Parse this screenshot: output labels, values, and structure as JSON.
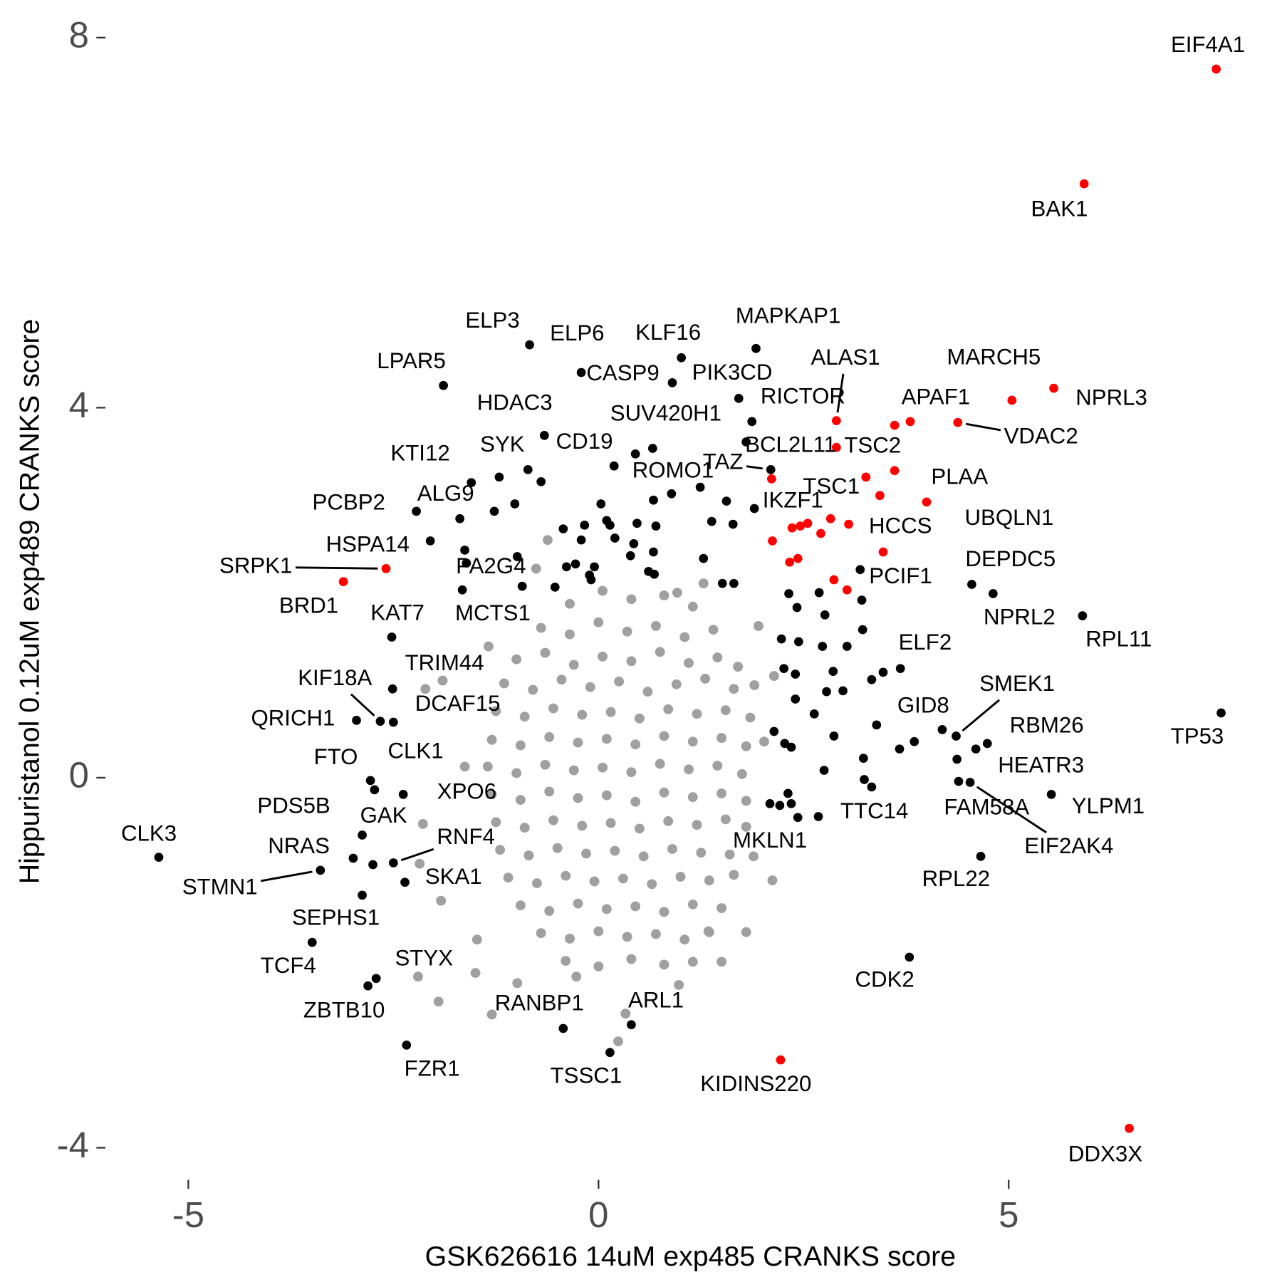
{
  "chart_data": {
    "type": "scatter",
    "x_label": "GSK626616 14uM exp485 CRANKS score",
    "y_label": "Hippuristanol 0.12uM exp489 CRANKS score",
    "xlim": [
      -5.99,
      7.87
    ],
    "ylim": [
      -4.24,
      8.3
    ],
    "xticks": [
      -5,
      0,
      5
    ],
    "yticks": [
      -4,
      0,
      4,
      8
    ],
    "grid": false,
    "series": [
      {
        "color": "#a0a0a0",
        "x": [
          -0.35,
          0.05,
          0.4,
          0.8,
          1.15,
          -0.7,
          -0.35,
          0.0,
          0.35,
          0.7,
          1.05,
          1.4,
          -1.0,
          -0.65,
          -0.3,
          0.05,
          0.4,
          0.75,
          1.1,
          1.45,
          1.7,
          -1.15,
          -0.8,
          -0.45,
          -0.1,
          0.25,
          0.6,
          0.95,
          1.3,
          1.65,
          1.9,
          -1.25,
          -0.9,
          -0.55,
          -0.2,
          0.15,
          0.5,
          0.85,
          1.2,
          1.55,
          1.85,
          -1.3,
          -0.95,
          -0.6,
          -0.25,
          0.1,
          0.45,
          0.8,
          1.15,
          1.5,
          1.8,
          -1.35,
          -1.0,
          -0.65,
          -0.3,
          0.05,
          0.4,
          0.75,
          1.1,
          1.45,
          1.75,
          -1.3,
          -0.95,
          -0.6,
          -0.25,
          0.1,
          0.45,
          0.8,
          1.15,
          1.5,
          1.8,
          -1.25,
          -0.9,
          -0.55,
          -0.2,
          0.15,
          0.5,
          0.85,
          1.2,
          1.55,
          1.8,
          -1.2,
          -0.85,
          -0.5,
          -0.15,
          0.2,
          0.55,
          0.9,
          1.25,
          1.6,
          -1.1,
          -0.75,
          -0.4,
          -0.05,
          0.3,
          0.65,
          1.0,
          1.35,
          1.65,
          -0.95,
          -0.6,
          -0.25,
          0.1,
          0.45,
          0.8,
          1.15,
          1.5,
          -0.7,
          -0.35,
          0.0,
          0.35,
          0.7,
          1.05,
          1.35,
          -0.4,
          0.0,
          0.4,
          0.8,
          1.15,
          -0.62,
          -0.76,
          0.96,
          1.28,
          1.95,
          -1.34,
          -2.11,
          -1.9,
          -2.14,
          -2.18,
          -1.92,
          -2.2,
          -1.95,
          -1.3,
          -0.99,
          -1.5,
          -0.27,
          0.24,
          0.98,
          1.5,
          1.8,
          2.12,
          1.89,
          2.02,
          2.14,
          -1.63,
          -1.48,
          0.33,
          1.34
        ],
        "values": [
          1.88,
          2.02,
          1.93,
          1.97,
          1.85,
          1.62,
          1.55,
          1.68,
          1.58,
          1.64,
          1.52,
          1.6,
          1.28,
          1.35,
          1.22,
          1.31,
          1.26,
          1.36,
          1.24,
          1.3,
          1.2,
          1.02,
          0.95,
          1.06,
          0.98,
          1.04,
          0.93,
          1.01,
          1.07,
          0.96,
          1.0,
          0.72,
          0.66,
          0.75,
          0.68,
          0.71,
          0.64,
          0.74,
          0.69,
          0.73,
          0.65,
          0.41,
          0.35,
          0.44,
          0.38,
          0.42,
          0.36,
          0.45,
          0.39,
          0.43,
          0.34,
          0.12,
          0.05,
          0.14,
          0.08,
          0.11,
          0.06,
          0.15,
          0.09,
          0.13,
          0.04,
          -0.18,
          -0.24,
          -0.15,
          -0.22,
          -0.19,
          -0.26,
          -0.16,
          -0.21,
          -0.17,
          -0.25,
          -0.48,
          -0.54,
          -0.46,
          -0.52,
          -0.49,
          -0.55,
          -0.47,
          -0.51,
          -0.45,
          -0.53,
          -0.78,
          -0.84,
          -0.76,
          -0.82,
          -0.79,
          -0.85,
          -0.77,
          -0.81,
          -0.83,
          -1.08,
          -1.14,
          -1.06,
          -1.12,
          -1.09,
          -1.15,
          -1.07,
          -1.11,
          -1.05,
          -1.38,
          -1.44,
          -1.36,
          -1.42,
          -1.39,
          -1.45,
          -1.37,
          -1.41,
          -1.68,
          -1.74,
          -1.66,
          -1.72,
          -1.69,
          -1.75,
          -1.67,
          -1.98,
          -2.04,
          -1.96,
          -2.02,
          -1.99,
          2.57,
          2.26,
          2.0,
          2.1,
          1.64,
          1.42,
          0.96,
          1.05,
          -0.5,
          -0.93,
          -1.33,
          -2.15,
          -2.42,
          -2.56,
          -2.22,
          -2.11,
          -2.15,
          -2.85,
          -2.24,
          -1.99,
          -1.67,
          -1.11,
          -0.85,
          0.39,
          1.1,
          0.12,
          -1.75,
          -2.55,
          -1.66
        ]
      },
      {
        "color": "#000000",
        "x": [
          -0.84,
          -0.21,
          1.01,
          1.92,
          -1.89,
          0.9,
          1.71,
          1.87,
          -0.66,
          0.66,
          0.45,
          1.8,
          0.19,
          -0.86,
          -1.55,
          -1.21,
          -0.7,
          2.1,
          1.24,
          0.89,
          0.67,
          1.56,
          -1.02,
          -1.27,
          -2.22,
          -1.69,
          0.03,
          0.1,
          0.14,
          -0.17,
          -0.43,
          -0.21,
          0.2,
          0.47,
          0.7,
          0.43,
          0.67,
          0.39,
          1.38,
          1.64,
          1.9,
          -2.05,
          -1.63,
          -1.61,
          -0.99,
          -0.39,
          -0.28,
          -0.05,
          -0.11,
          -0.93,
          -0.53,
          -0.09,
          0.61,
          0.68,
          1.28,
          1.51,
          1.65,
          -1.66,
          -2.52,
          -2.51,
          -2.66,
          -2.95,
          -2.5,
          -2.78,
          -2.73,
          -2.38,
          -2.88,
          -2.99,
          -2.5,
          -2.75,
          -3.39,
          -2.36,
          -2.88,
          -3.49,
          -2.71,
          -2.81,
          -2.34,
          -0.43,
          0.4,
          0.14,
          -5.36,
          3.79,
          2.32,
          2.42,
          2.69,
          3.21,
          3.22,
          2.76,
          2.23,
          2.44,
          2.73,
          3.03,
          2.26,
          2.4,
          2.86,
          3.33,
          3.47,
          3.68,
          2.98,
          2.78,
          2.4,
          2.63,
          3.39,
          3.85,
          3.67,
          2.87,
          3.23,
          2.35,
          2.27,
          2.14,
          2.75,
          3.33,
          3.24,
          2.68,
          2.09,
          2.21,
          2.31,
          2.35,
          2.43,
          4.19,
          4.36,
          4.6,
          4.74,
          4.39,
          4.53,
          5.52,
          4.37,
          4.66,
          7.59,
          4.81,
          4.55,
          5.9,
          3.19
        ],
        "values": [
          4.68,
          4.38,
          4.54,
          4.64,
          4.24,
          4.27,
          4.1,
          3.85,
          3.7,
          3.56,
          3.5,
          3.63,
          3.37,
          3.33,
          3.19,
          3.25,
          3.2,
          3.33,
          3.14,
          3.07,
          3.0,
          2.99,
          2.96,
          2.88,
          2.88,
          2.8,
          2.96,
          2.78,
          2.73,
          2.73,
          2.69,
          2.57,
          2.59,
          2.75,
          2.72,
          2.53,
          2.44,
          2.4,
          2.77,
          2.74,
          2.91,
          2.56,
          2.46,
          2.32,
          2.39,
          2.28,
          2.31,
          2.28,
          2.19,
          2.07,
          2.06,
          2.14,
          2.23,
          2.2,
          2.37,
          2.1,
          2.1,
          2.03,
          1.52,
          0.96,
          0.61,
          0.62,
          0.6,
          -0.03,
          -0.13,
          -0.18,
          -0.62,
          -0.87,
          -0.92,
          -0.94,
          -1.0,
          -1.13,
          -1.27,
          -1.78,
          -2.17,
          -2.25,
          -2.89,
          -2.71,
          -2.67,
          -2.97,
          -0.86,
          -1.94,
          1.99,
          1.84,
          2.0,
          1.92,
          1.6,
          1.76,
          1.5,
          1.47,
          1.42,
          1.42,
          1.18,
          1.12,
          1.15,
          1.06,
          1.14,
          1.18,
          0.94,
          0.93,
          0.85,
          0.69,
          0.57,
          0.39,
          0.31,
          0.45,
          0.21,
          0.33,
          0.37,
          0.5,
          0.08,
          -0.1,
          -0.02,
          -0.42,
          -0.28,
          -0.3,
          -0.17,
          -0.28,
          -0.43,
          0.52,
          0.45,
          0.31,
          0.37,
          -0.04,
          -0.05,
          -0.18,
          0.2,
          -0.85,
          0.7,
          1.99,
          2.09,
          1.75,
          2.25
        ],
        "labels": [
          "ELP3",
          "ELP6",
          "KLF16",
          "MAPKAP1",
          "LPAR5",
          "CASP9",
          "PIK3CD",
          "RICTOR",
          "HDAC3",
          "SUV420H1",
          null,
          "BCL2L11",
          "CD19",
          "SYK",
          "KTI12",
          null,
          null,
          "TAZ",
          "ROMO1",
          null,
          null,
          null,
          "ALG9",
          null,
          "PCBP2",
          null,
          null,
          null,
          null,
          null,
          null,
          null,
          null,
          null,
          null,
          null,
          null,
          null,
          null,
          null,
          null,
          "HSPA14",
          null,
          null,
          "PA2G4",
          null,
          null,
          null,
          null,
          null,
          null,
          null,
          null,
          null,
          null,
          null,
          null,
          "MCTS1",
          "KAT7",
          "TRIM44",
          "KIF18A",
          "QRICH1",
          "DCAF15",
          "FTO",
          "XPO6",
          "CLK1",
          "PDS5B",
          "NRAS",
          "RNF4",
          "GAK",
          "STMN1",
          "SKA1",
          "SEPHS1",
          "TCF4",
          "STYX",
          "ZBTB10",
          "FZR1",
          "RANBP1",
          "ARL1",
          "TSSC1",
          "CLK3",
          "CDK2",
          null,
          null,
          null,
          null,
          null,
          null,
          null,
          null,
          null,
          null,
          null,
          null,
          null,
          null,
          null,
          "ELF2",
          null,
          null,
          null,
          null,
          null,
          null,
          null,
          null,
          null,
          null,
          null,
          null,
          null,
          null,
          null,
          "TTC14",
          "MKLN1",
          null,
          null,
          null,
          null,
          "GID8",
          "SMEK1",
          "RBM26",
          null,
          "FAM58A",
          "EIF2AK4",
          "YLPM1",
          "HEATR3",
          "RPL22",
          "TP53",
          "NPRL2",
          "DEPDC5",
          "RPL11",
          null
        ]
      },
      {
        "color": "#ff0000",
        "x": [
          7.53,
          5.92,
          5.55,
          5.04,
          3.8,
          3.61,
          4.38,
          2.9,
          2.9,
          3.61,
          2.11,
          3.26,
          3.43,
          4.0,
          2.36,
          2.46,
          2.55,
          2.71,
          2.83,
          3.05,
          2.12,
          3.47,
          2.33,
          2.43,
          2.87,
          3.03,
          -2.59,
          -3.11,
          2.22,
          6.47
        ],
        "values": [
          7.66,
          6.42,
          4.21,
          4.08,
          3.85,
          3.81,
          3.84,
          3.86,
          3.57,
          3.32,
          3.23,
          3.25,
          3.05,
          2.98,
          2.7,
          2.72,
          2.75,
          2.64,
          2.8,
          2.74,
          2.56,
          2.44,
          2.33,
          2.37,
          2.14,
          2.03,
          2.26,
          2.12,
          -3.05,
          -3.79
        ],
        "labels": [
          "EIF4A1",
          "BAK1",
          "NPRL3",
          "MARCH5",
          "APAF1",
          null,
          "VDAC2",
          "ALAS1",
          "TSC2",
          "UBQLN1",
          null,
          "TSC1",
          null,
          "PLAA",
          "IKZF1",
          null,
          null,
          null,
          null,
          null,
          null,
          "HCCS",
          null,
          null,
          null,
          "PCIF1",
          "SRPK1",
          "BRD1",
          "KIDINS220",
          "DDX3X"
        ]
      }
    ]
  }
}
